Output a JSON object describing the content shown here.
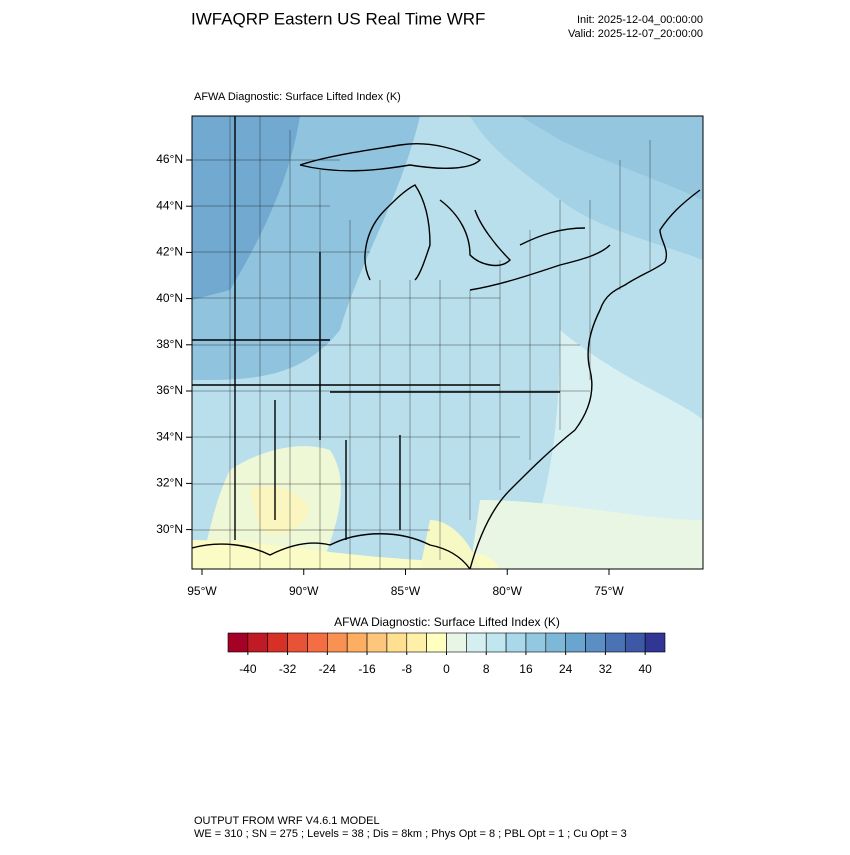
{
  "header": {
    "title": "IWFAQRP Eastern US Real Time WRF",
    "init": "Init: 2025-12-04_00:00:00",
    "valid": "Valid: 2025-12-07_20:00:00"
  },
  "map": {
    "subtitle": "AFWA Diagnostic: Surface Lifted Index   (K)",
    "lat_ticks": [
      {
        "value": 46,
        "label": "46°N"
      },
      {
        "value": 44,
        "label": "44°N"
      },
      {
        "value": 42,
        "label": "42°N"
      },
      {
        "value": 40,
        "label": "40°N"
      },
      {
        "value": 38,
        "label": "38°N"
      },
      {
        "value": 36,
        "label": "36°N"
      },
      {
        "value": 34,
        "label": "34°N"
      },
      {
        "value": 32,
        "label": "32°N"
      },
      {
        "value": 30,
        "label": "30°N"
      }
    ],
    "lon_ticks": [
      {
        "value": -95,
        "label": "95°W"
      },
      {
        "value": -90,
        "label": "90°W"
      },
      {
        "value": -85,
        "label": "85°W"
      },
      {
        "value": -80,
        "label": "80°W"
      },
      {
        "value": -75,
        "label": "75°W"
      }
    ]
  },
  "colorbar": {
    "title": "AFWA Diagnostic: Surface Lifted Index  (K)",
    "ticks": [
      -40,
      -32,
      -24,
      -16,
      -8,
      0,
      8,
      16,
      24,
      32,
      40
    ],
    "colors": [
      "#a50026",
      "#c11a27",
      "#d73027",
      "#e85337",
      "#f46d43",
      "#f99153",
      "#fdae61",
      "#fec67c",
      "#fee090",
      "#fef0a7",
      "#ffffbf",
      "#e8f6e6",
      "#d5eef0",
      "#c0e6ef",
      "#a8d8e9",
      "#92c9e0",
      "#7db8d8",
      "#6aa5cf",
      "#5b8fc3",
      "#4b72b4",
      "#3e58a8",
      "#313695"
    ]
  },
  "footer": {
    "line1": "OUTPUT FROM WRF V4.6.1 MODEL",
    "line2": "WE = 310 ; SN = 275 ; Levels = 38 ; Dis = 8km ; Phys Opt = 8 ; PBL Opt = 1 ; Cu Opt = 3"
  }
}
